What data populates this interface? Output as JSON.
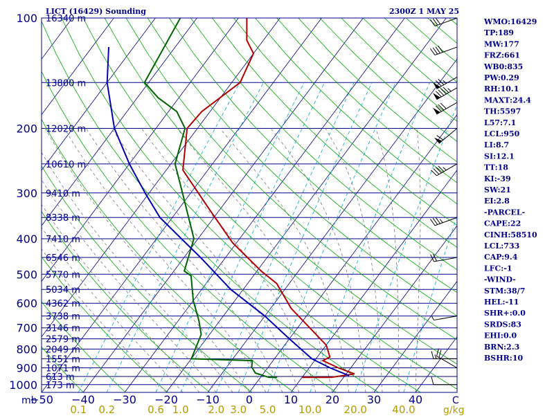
{
  "chart_data": {
    "type": "line",
    "title": "LICT (16429) Sounding",
    "time_label": "2300Z  1 MAY 25",
    "x_axis_unit": "C",
    "x_ticks": [
      -50,
      -40,
      -30,
      -20,
      -10,
      0,
      10,
      20,
      30,
      40
    ],
    "x_range": [
      -50,
      50
    ],
    "y_axis_unit": "mb",
    "pressure_ticks": [
      100,
      200,
      300,
      400,
      500,
      600,
      700,
      800,
      900,
      1000
    ],
    "pressure_range": [
      100,
      1050
    ],
    "log_pressure_axis": true,
    "skew_per_decade_C": 66,
    "height_labels": [
      {
        "p": 100,
        "label": "16340 m"
      },
      {
        "p": 150,
        "label": "13800 m"
      },
      {
        "p": 200,
        "label": "12020 m"
      },
      {
        "p": 250,
        "label": "10610 m"
      },
      {
        "p": 300,
        "label": "9410 m"
      },
      {
        "p": 350,
        "label": "8338 m"
      },
      {
        "p": 400,
        "label": "7410 m"
      },
      {
        "p": 450,
        "label": "6546 m"
      },
      {
        "p": 500,
        "label": "5770 m"
      },
      {
        "p": 550,
        "label": "5034 m"
      },
      {
        "p": 600,
        "label": "4362 m"
      },
      {
        "p": 650,
        "label": "3738 m"
      },
      {
        "p": 700,
        "label": "3146 m"
      },
      {
        "p": 750,
        "label": "2579 m"
      },
      {
        "p": 800,
        "label": "2049 m"
      },
      {
        "p": 850,
        "label": "1551 m"
      },
      {
        "p": 900,
        "label": "1071 m"
      },
      {
        "p": 950,
        "label": "613 m"
      },
      {
        "p": 1000,
        "label": "173 m"
      }
    ],
    "mixing_ratio_labels": [
      "0.1",
      "0.2",
      "0.6",
      "1.0",
      "2.0",
      "3.0",
      "5.0",
      "10.0",
      "20.0",
      "40.0"
    ],
    "mixing_ratio_values": [
      0.1,
      0.2,
      0.6,
      1.0,
      2.0,
      3.0,
      5.0,
      10.0,
      20.0,
      40.0
    ],
    "mixing_ratio_unit": "g/kg",
    "series": [
      {
        "color": "#b00000",
        "points": [
          [
            955,
            10
          ],
          [
            955,
            17
          ],
          [
            935,
            22
          ],
          [
            900,
            17
          ],
          [
            860,
            12
          ],
          [
            840,
            13
          ],
          [
            780,
            10
          ],
          [
            620,
            -5
          ],
          [
            530,
            -13
          ],
          [
            490,
            -19
          ],
          [
            410,
            -31
          ],
          [
            330,
            -43
          ],
          [
            260,
            -56
          ],
          [
            200,
            -62.5
          ],
          [
            180,
            -62
          ],
          [
            150,
            -58
          ],
          [
            125,
            -60
          ],
          [
            115,
            -64
          ],
          [
            100,
            -68
          ]
        ]
      },
      {
        "color": "#006400",
        "points": [
          [
            955,
            4
          ],
          [
            955,
            2
          ],
          [
            930,
            -2
          ],
          [
            895,
            -4
          ],
          [
            860,
            -5
          ],
          [
            850,
            -20
          ],
          [
            730,
            -22
          ],
          [
            670,
            -25
          ],
          [
            590,
            -30
          ],
          [
            505,
            -35
          ],
          [
            490,
            -37.5
          ],
          [
            400,
            -41
          ],
          [
            300,
            -52
          ],
          [
            250,
            -59
          ],
          [
            200,
            -63
          ],
          [
            180,
            -68
          ],
          [
            165,
            -75
          ],
          [
            150,
            -81
          ],
          [
            100,
            -84
          ]
        ]
      },
      {
        "color": "#0000b0",
        "points": [
          [
            945,
            21
          ],
          [
            900,
            15
          ],
          [
            850,
            9
          ],
          [
            750,
            0
          ],
          [
            650,
            -10
          ],
          [
            550,
            -23
          ],
          [
            450,
            -36
          ],
          [
            400,
            -44
          ],
          [
            350,
            -53
          ],
          [
            300,
            -61
          ],
          [
            250,
            -70
          ],
          [
            200,
            -80
          ],
          [
            150,
            -90
          ],
          [
            120,
            -96
          ]
        ]
      }
    ],
    "wind_barbs": [
      {
        "p": 1000,
        "dir": 270,
        "spd": 10
      },
      {
        "p": 900,
        "dir": 300,
        "spd": 20
      },
      {
        "p": 850,
        "dir": 270,
        "spd": 15
      },
      {
        "p": 650,
        "dir": 260,
        "spd": 5
      },
      {
        "p": 450,
        "dir": 260,
        "spd": 20
      },
      {
        "p": 350,
        "dir": 250,
        "spd": 35
      },
      {
        "p": 250,
        "dir": 240,
        "spd": 45
      },
      {
        "p": 200,
        "dir": 230,
        "spd": 60
      },
      {
        "p": 170,
        "dir": 240,
        "spd": 80
      },
      {
        "p": 155,
        "dir": 240,
        "spd": 95
      },
      {
        "p": 145,
        "dir": 240,
        "spd": 75
      },
      {
        "p": 120,
        "dir": 250,
        "spd": 40
      },
      {
        "p": 100,
        "dir": 250,
        "spd": 30
      }
    ]
  },
  "indices": [
    "WMO:16429",
    "TP:189",
    "MW:177",
    "FRZ:661",
    "WB0:835",
    "PW:0.29",
    "RH:10.1",
    "MAXT:24.4",
    "TH:5597",
    "L57:7.1",
    "LCL:950",
    "LI:8.7",
    "SI:12.1",
    "TT:18",
    "KI:-39",
    "SW:21",
    "EI:2.8",
    "-PARCEL-",
    "CAPE:22",
    "CINH:58510",
    "LCL:733",
    "CAP:9.4",
    "LFC:-1",
    "-WIND-",
    "STM:38/7",
    "HEL:-11",
    "SHR+:0.0",
    "SRDS:83",
    "EHI:0.0",
    "BRN:2.3",
    "BSHR:10"
  ],
  "colors": {
    "isobar": "#00008b",
    "skew_isotherm": "#00008b",
    "dry_adiabat": "#00aa00",
    "mixing_ratio_line": "#00aacc",
    "moist_adiabat": "#777777",
    "axis_text": "#00008b",
    "mixing_text": "#b59a00"
  }
}
